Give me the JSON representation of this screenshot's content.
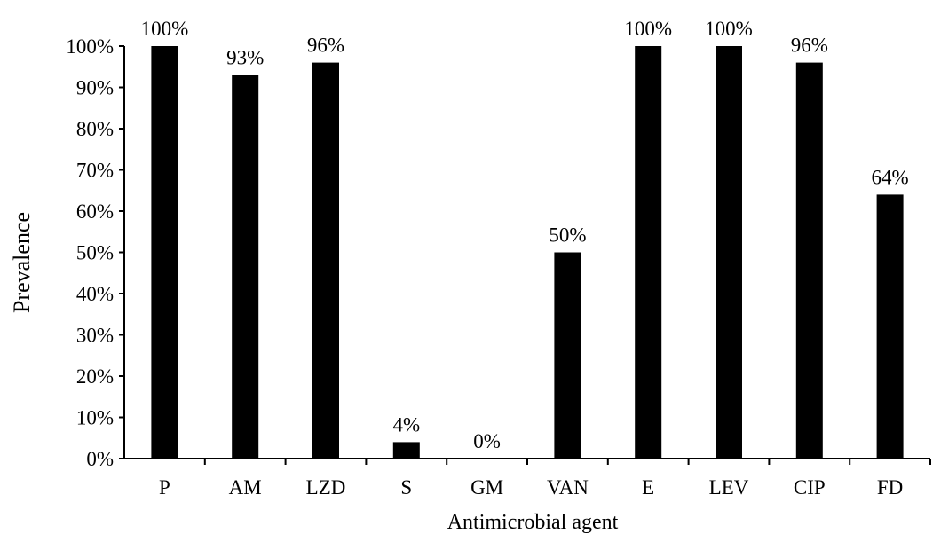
{
  "chart_data": {
    "type": "bar",
    "xlabel": "Antimicrobial agent",
    "ylabel": "Prevalence",
    "ylim": [
      0,
      100
    ],
    "y_ticks": [
      "0%",
      "10%",
      "20%",
      "30%",
      "40%",
      "50%",
      "60%",
      "70%",
      "80%",
      "90%",
      "100%"
    ],
    "categories": [
      "P",
      "AM",
      "LZD",
      "S",
      "GM",
      "VAN",
      "E",
      "LEV",
      "CIP",
      "FD"
    ],
    "values": [
      100,
      93,
      96,
      4,
      0,
      50,
      100,
      100,
      96,
      64
    ],
    "data_labels": [
      "100%",
      "93%",
      "96%",
      "4%",
      "0%",
      "50%",
      "100%",
      "100%",
      "96%",
      "64%"
    ],
    "bar_color": "#000000",
    "grid": false,
    "legend": "none"
  }
}
